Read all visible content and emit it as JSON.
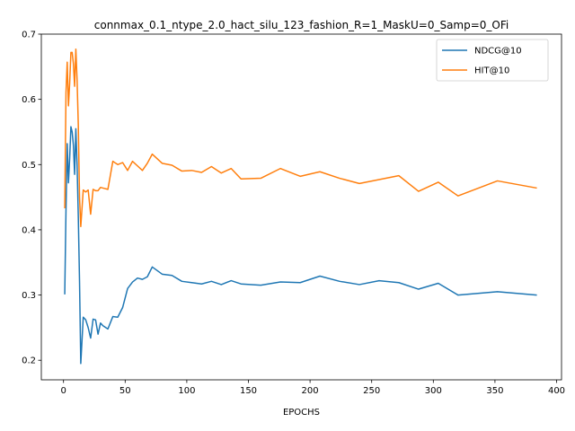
{
  "chart_data": {
    "type": "line",
    "title": "connmax_0.1_ntype_2.0_hact_silu_123_fashion_R=1_MaskU=0_Samp=0_OFi",
    "xlabel": "EPOCHS",
    "ylabel": "",
    "xlim": [
      -18,
      404
    ],
    "ylim": [
      0.17,
      0.7
    ],
    "xticks": [
      0,
      50,
      100,
      150,
      200,
      250,
      300,
      350,
      400
    ],
    "yticks": [
      0.2,
      0.3,
      0.4,
      0.5,
      0.6,
      0.7
    ],
    "grid": false,
    "legend_position": "top-right",
    "series": [
      {
        "name": "NDCG@10",
        "color": "#1f77b4",
        "x": [
          1,
          2,
          3,
          4,
          5,
          6,
          7,
          8,
          9,
          10,
          11,
          12,
          13,
          14,
          16,
          18,
          20,
          22,
          24,
          26,
          28,
          30,
          32,
          36,
          40,
          44,
          48,
          52,
          56,
          60,
          64,
          68,
          72,
          80,
          88,
          96,
          104,
          112,
          120,
          128,
          136,
          144,
          160,
          176,
          192,
          208,
          224,
          240,
          256,
          272,
          288,
          304,
          320,
          352,
          384
        ],
        "values": [
          0.301,
          0.43,
          0.532,
          0.472,
          0.51,
          0.558,
          0.55,
          0.53,
          0.485,
          0.555,
          0.5,
          0.42,
          0.32,
          0.195,
          0.266,
          0.262,
          0.25,
          0.234,
          0.263,
          0.262,
          0.24,
          0.257,
          0.253,
          0.248,
          0.267,
          0.266,
          0.281,
          0.31,
          0.32,
          0.326,
          0.324,
          0.328,
          0.343,
          0.332,
          0.33,
          0.321,
          0.319,
          0.317,
          0.321,
          0.316,
          0.322,
          0.317,
          0.315,
          0.32,
          0.319,
          0.329,
          0.321,
          0.316,
          0.322,
          0.319,
          0.309,
          0.318,
          0.3,
          0.305,
          0.3
        ]
      },
      {
        "name": "HIT@10",
        "color": "#ff7f0e",
        "x": [
          1,
          2,
          3,
          4,
          5,
          6,
          7,
          8,
          9,
          10,
          11,
          12,
          13,
          14,
          16,
          18,
          20,
          22,
          24,
          26,
          28,
          30,
          32,
          36,
          40,
          44,
          48,
          52,
          56,
          60,
          64,
          68,
          72,
          80,
          88,
          96,
          104,
          112,
          120,
          128,
          136,
          144,
          160,
          176,
          192,
          208,
          224,
          240,
          256,
          272,
          288,
          304,
          320,
          352,
          384
        ],
        "values": [
          0.433,
          0.61,
          0.657,
          0.59,
          0.625,
          0.672,
          0.672,
          0.655,
          0.62,
          0.677,
          0.63,
          0.56,
          0.45,
          0.405,
          0.461,
          0.458,
          0.461,
          0.424,
          0.462,
          0.46,
          0.46,
          0.465,
          0.464,
          0.462,
          0.505,
          0.5,
          0.503,
          0.491,
          0.505,
          0.498,
          0.491,
          0.502,
          0.516,
          0.502,
          0.499,
          0.49,
          0.491,
          0.488,
          0.497,
          0.487,
          0.494,
          0.478,
          0.479,
          0.494,
          0.482,
          0.489,
          0.479,
          0.471,
          0.477,
          0.483,
          0.459,
          0.473,
          0.452,
          0.475,
          0.464
        ]
      }
    ]
  }
}
